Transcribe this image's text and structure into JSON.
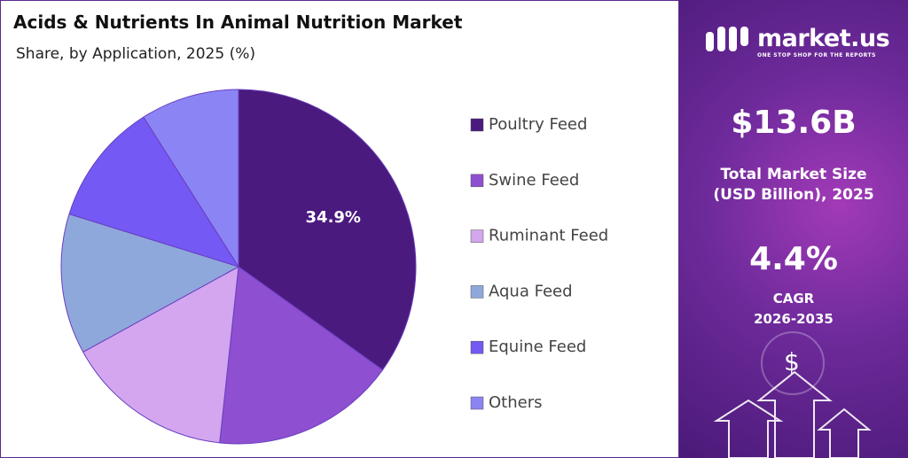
{
  "chart_data": {
    "type": "pie",
    "title": "Acids & Nutrients In Animal Nutrition Market",
    "subtitle": "Share, by Application, 2025 (%)",
    "categories": [
      "Poultry Feed",
      "Swine Feed",
      "Ruminant Feed",
      "Aqua Feed",
      "Equine Feed",
      "Others"
    ],
    "values": [
      34.9,
      16.8,
      15.3,
      12.8,
      11.2,
      9.0
    ],
    "value_labels": [
      "34.9%",
      null,
      null,
      null,
      null,
      null
    ],
    "colors": [
      "#4b1a7e",
      "#8e4fd1",
      "#d3a6ef",
      "#8fa8dc",
      "#7459f4",
      "#8b84f5"
    ]
  },
  "sidebar": {
    "brand": "market.us",
    "tagline": "ONE STOP SHOP FOR THE REPORTS",
    "market_size": "$13.6B",
    "market_size_label": [
      "Total Market Size",
      "(USD Billion), 2025"
    ],
    "cagr": "4.4%",
    "cagr_label": [
      "CAGR",
      "2026-2035"
    ],
    "icon": "$"
  }
}
